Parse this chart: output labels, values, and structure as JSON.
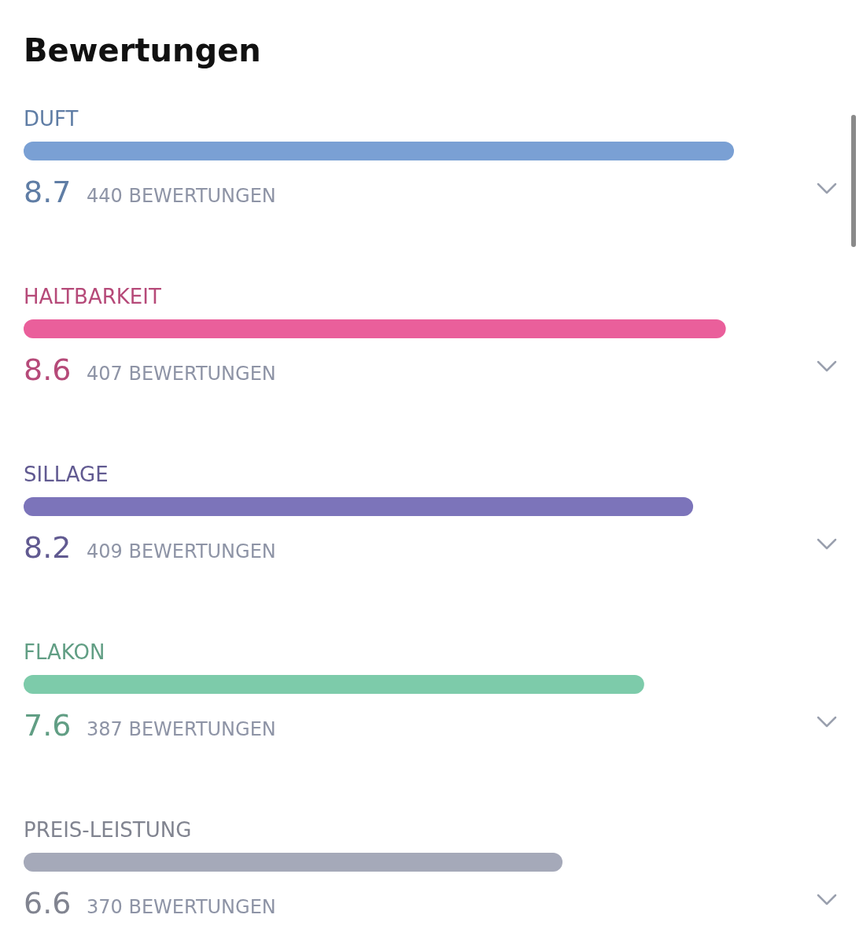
{
  "chart_data": {
    "type": "bar",
    "orientation": "horizontal",
    "title": "Bewertungen",
    "categories": [
      "DUFT",
      "HALTBARKEIT",
      "SILLAGE",
      "FLAKON",
      "PREIS-LEISTUNG"
    ],
    "values": [
      8.7,
      8.6,
      8.2,
      7.6,
      6.6
    ],
    "colors": [
      "#7aa0d4",
      "#ea5f9b",
      "#7c74ba",
      "#7dcbaa",
      "#a5a9b9"
    ],
    "data_labels": true,
    "annotations": [
      "440 BEWERTUNGEN",
      "407 BEWERTUNGEN",
      "409 BEWERTUNGEN",
      "387 BEWERTUNGEN",
      "370 BEWERTUNGEN"
    ]
  }
}
